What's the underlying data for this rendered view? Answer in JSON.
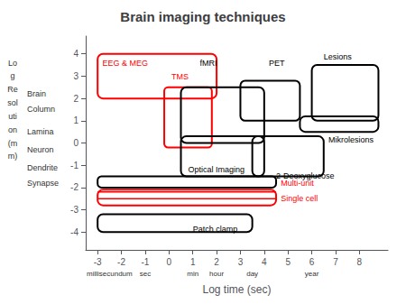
{
  "chart_data": {
    "type": "boxes",
    "title": "Brain imaging techniques",
    "xlabel": "Log time (sec)",
    "xlim": [
      -3.5,
      9.2
    ],
    "ylim": [
      -4.8,
      4.8
    ],
    "xticks": [
      -3,
      -2,
      -1,
      0,
      1,
      2,
      3,
      4,
      5,
      6,
      7,
      8
    ],
    "yticks": [
      -4,
      -3,
      -2,
      -1,
      0,
      1,
      2,
      3,
      4
    ],
    "grid": false,
    "x_unit_labels": [
      {
        "x": -2.5,
        "text": "millisecundum"
      },
      {
        "x": -1.0,
        "text": "sec"
      },
      {
        "x": 1.0,
        "text": "min"
      },
      {
        "x": 2.0,
        "text": "hour"
      },
      {
        "x": 3.5,
        "text": "day"
      },
      {
        "x": 6.0,
        "text": "year"
      }
    ],
    "ylabel_parts": [
      {
        "y": 3.6,
        "text": "Lo"
      },
      {
        "y": 3.0,
        "text": "g"
      },
      {
        "y": 2.4,
        "text": "Re"
      },
      {
        "y": 1.8,
        "text": "sol"
      },
      {
        "y": 1.2,
        "text": "uti"
      },
      {
        "y": 0.6,
        "text": "on"
      },
      {
        "y": 0.0,
        "text": "(m"
      },
      {
        "y": -0.6,
        "text": "m)"
      }
    ],
    "y_scale_labels": [
      {
        "y": 2.2,
        "text": "Brain"
      },
      {
        "y": 1.5,
        "text": "Column"
      },
      {
        "y": 0.5,
        "text": "Lamina"
      },
      {
        "y": -0.3,
        "text": "Neuron"
      },
      {
        "y": -1.1,
        "text": "Dendrite"
      },
      {
        "y": -1.8,
        "text": "Synapse"
      }
    ],
    "boxes": [
      {
        "name": "EEG & MEG",
        "x0": -3.0,
        "x1": 2.0,
        "y0": 2.0,
        "y1": 4.0,
        "color": "red",
        "label_x": -2.8,
        "label_y": 3.6,
        "label_color": "red"
      },
      {
        "name": "TMS",
        "x0": -0.2,
        "x1": 1.8,
        "y0": -0.2,
        "y1": 2.5,
        "color": "red",
        "label_x": 0.1,
        "label_y": 2.8,
        "label_color": "red"
      },
      {
        "name": "fMRI",
        "x0": 0.5,
        "x1": 4.0,
        "y0": 0.0,
        "y1": 2.5,
        "color": "black",
        "label_x": 1.3,
        "label_y": 3.4,
        "label_color": "black"
      },
      {
        "name": "PET",
        "x0": 3.0,
        "x1": 5.5,
        "y0": 1.0,
        "y1": 2.8,
        "color": "black",
        "label_x": 4.2,
        "label_y": 3.4,
        "label_color": "black"
      },
      {
        "name": "Lesions",
        "x0": 6.0,
        "x1": 8.8,
        "y0": 1.0,
        "y1": 3.5,
        "color": "black",
        "label_x": 6.5,
        "label_y": 3.7,
        "label_color": "black"
      },
      {
        "name": "Mikrolesions",
        "x0": 5.5,
        "x1": 8.8,
        "y0": 0.5,
        "y1": 1.2,
        "color": "black",
        "label_x": 6.7,
        "label_y": -0.05,
        "label_color": "black"
      },
      {
        "name": "Optical Imaging",
        "x0": 0.5,
        "x1": 4.0,
        "y0": -1.5,
        "y1": 0.3,
        "color": "black",
        "label_x": 0.8,
        "label_y": -1.2,
        "label_color": "black"
      },
      {
        "name": "2-Deoxyglucose",
        "x0": 3.5,
        "x1": 6.5,
        "y0": -1.5,
        "y1": 0.3,
        "color": "black",
        "label_x": 4.5,
        "label_y": -1.65,
        "label_color": "black"
      },
      {
        "name": "Multi-unit",
        "x0": -3.0,
        "x1": 4.5,
        "y0": -2.0,
        "y1": -1.5,
        "color": "black",
        "label_x": 4.7,
        "label_y": -1.8,
        "label_color": "red"
      },
      {
        "name": "Single cell",
        "x0": -3.0,
        "x1": 4.5,
        "y0": -2.8,
        "y1": -2.1,
        "color": "red",
        "label_x": 4.7,
        "label_y": -2.5,
        "label_color": "red"
      },
      {
        "name": "Patch clamp",
        "x0": -3.0,
        "x1": 3.5,
        "y0": -4.0,
        "y1": -3.2,
        "color": "black",
        "label_x": 1.0,
        "label_y": -3.85,
        "label_color": "black"
      }
    ],
    "lines": [
      {
        "x0": -3.0,
        "x1": 4.5,
        "y": -2.2,
        "color": "red"
      },
      {
        "x0": -3.0,
        "x1": 4.5,
        "y": -2.5,
        "color": "red"
      }
    ]
  }
}
